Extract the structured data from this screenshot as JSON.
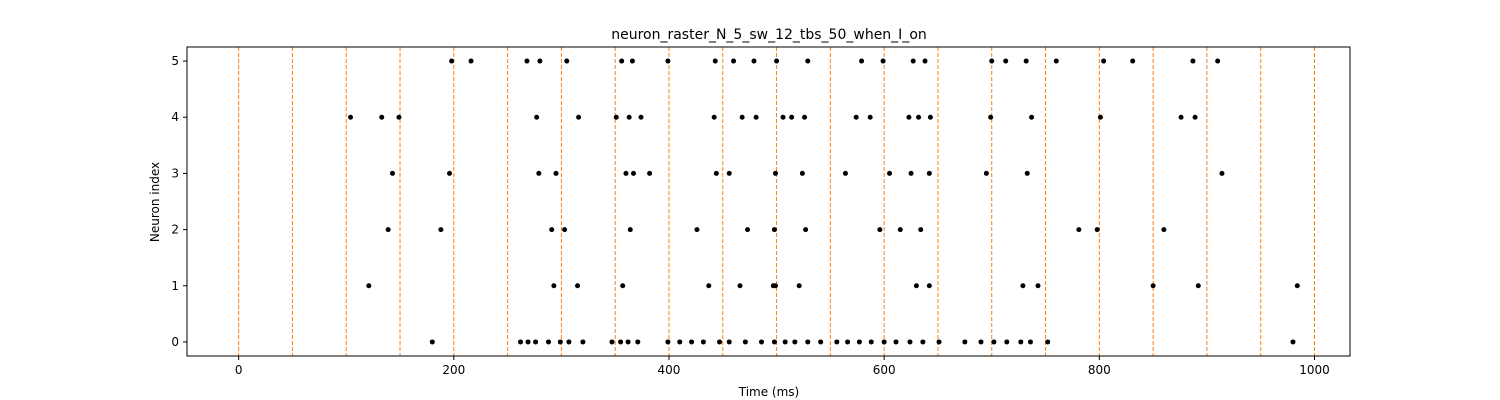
{
  "chart_data": {
    "type": "scatter",
    "title": "neuron_raster_N_5_sw_12_tbs_50_when_I_on",
    "xlabel": "Time (ms)",
    "ylabel": "Neuron index",
    "xlim": [
      -48,
      1033
    ],
    "ylim": [
      -0.25,
      5.25
    ],
    "xticks": [
      0,
      200,
      400,
      600,
      800,
      1000
    ],
    "yticks": [
      0,
      1,
      2,
      3,
      4,
      5
    ],
    "grid": false,
    "marker_color": "#000000",
    "vline_color": "#ff7f0e",
    "vlines": [
      0,
      50,
      100,
      150,
      200,
      250,
      300,
      350,
      400,
      450,
      500,
      550,
      600,
      650,
      700,
      750,
      800,
      850,
      900,
      950,
      1000
    ],
    "series": [
      {
        "neuron": 0,
        "spikes": [
          180,
          262,
          269,
          276,
          288,
          299,
          307,
          320,
          347,
          355,
          362,
          371,
          399,
          410,
          421,
          432,
          447,
          456,
          471,
          486,
          498,
          508,
          517,
          529,
          541,
          556,
          566,
          577,
          588,
          600,
          611,
          624,
          636,
          651,
          675,
          690,
          702,
          714,
          727,
          736,
          752,
          980
        ]
      },
      {
        "neuron": 1,
        "spikes": [
          121,
          293,
          315,
          357,
          437,
          466,
          497,
          499,
          521,
          630,
          642,
          729,
          743,
          850,
          892,
          984
        ]
      },
      {
        "neuron": 2,
        "spikes": [
          139,
          188,
          291,
          303,
          364,
          426,
          473,
          498,
          527,
          596,
          615,
          634,
          781,
          798,
          860
        ]
      },
      {
        "neuron": 3,
        "spikes": [
          143,
          196,
          279,
          295,
          360,
          367,
          382,
          444,
          456,
          499,
          524,
          564,
          605,
          625,
          642,
          695,
          733,
          914
        ]
      },
      {
        "neuron": 4,
        "spikes": [
          104,
          133,
          149,
          277,
          316,
          351,
          363,
          374,
          442,
          468,
          481,
          506,
          514,
          526,
          574,
          587,
          623,
          632,
          643,
          699,
          737,
          801,
          876,
          889
        ]
      },
      {
        "neuron": 5,
        "spikes": [
          198,
          216,
          268,
          280,
          305,
          356,
          366,
          399,
          443,
          460,
          479,
          500,
          529,
          579,
          599,
          627,
          638,
          700,
          713,
          732,
          760,
          804,
          831,
          887,
          910
        ]
      }
    ]
  }
}
